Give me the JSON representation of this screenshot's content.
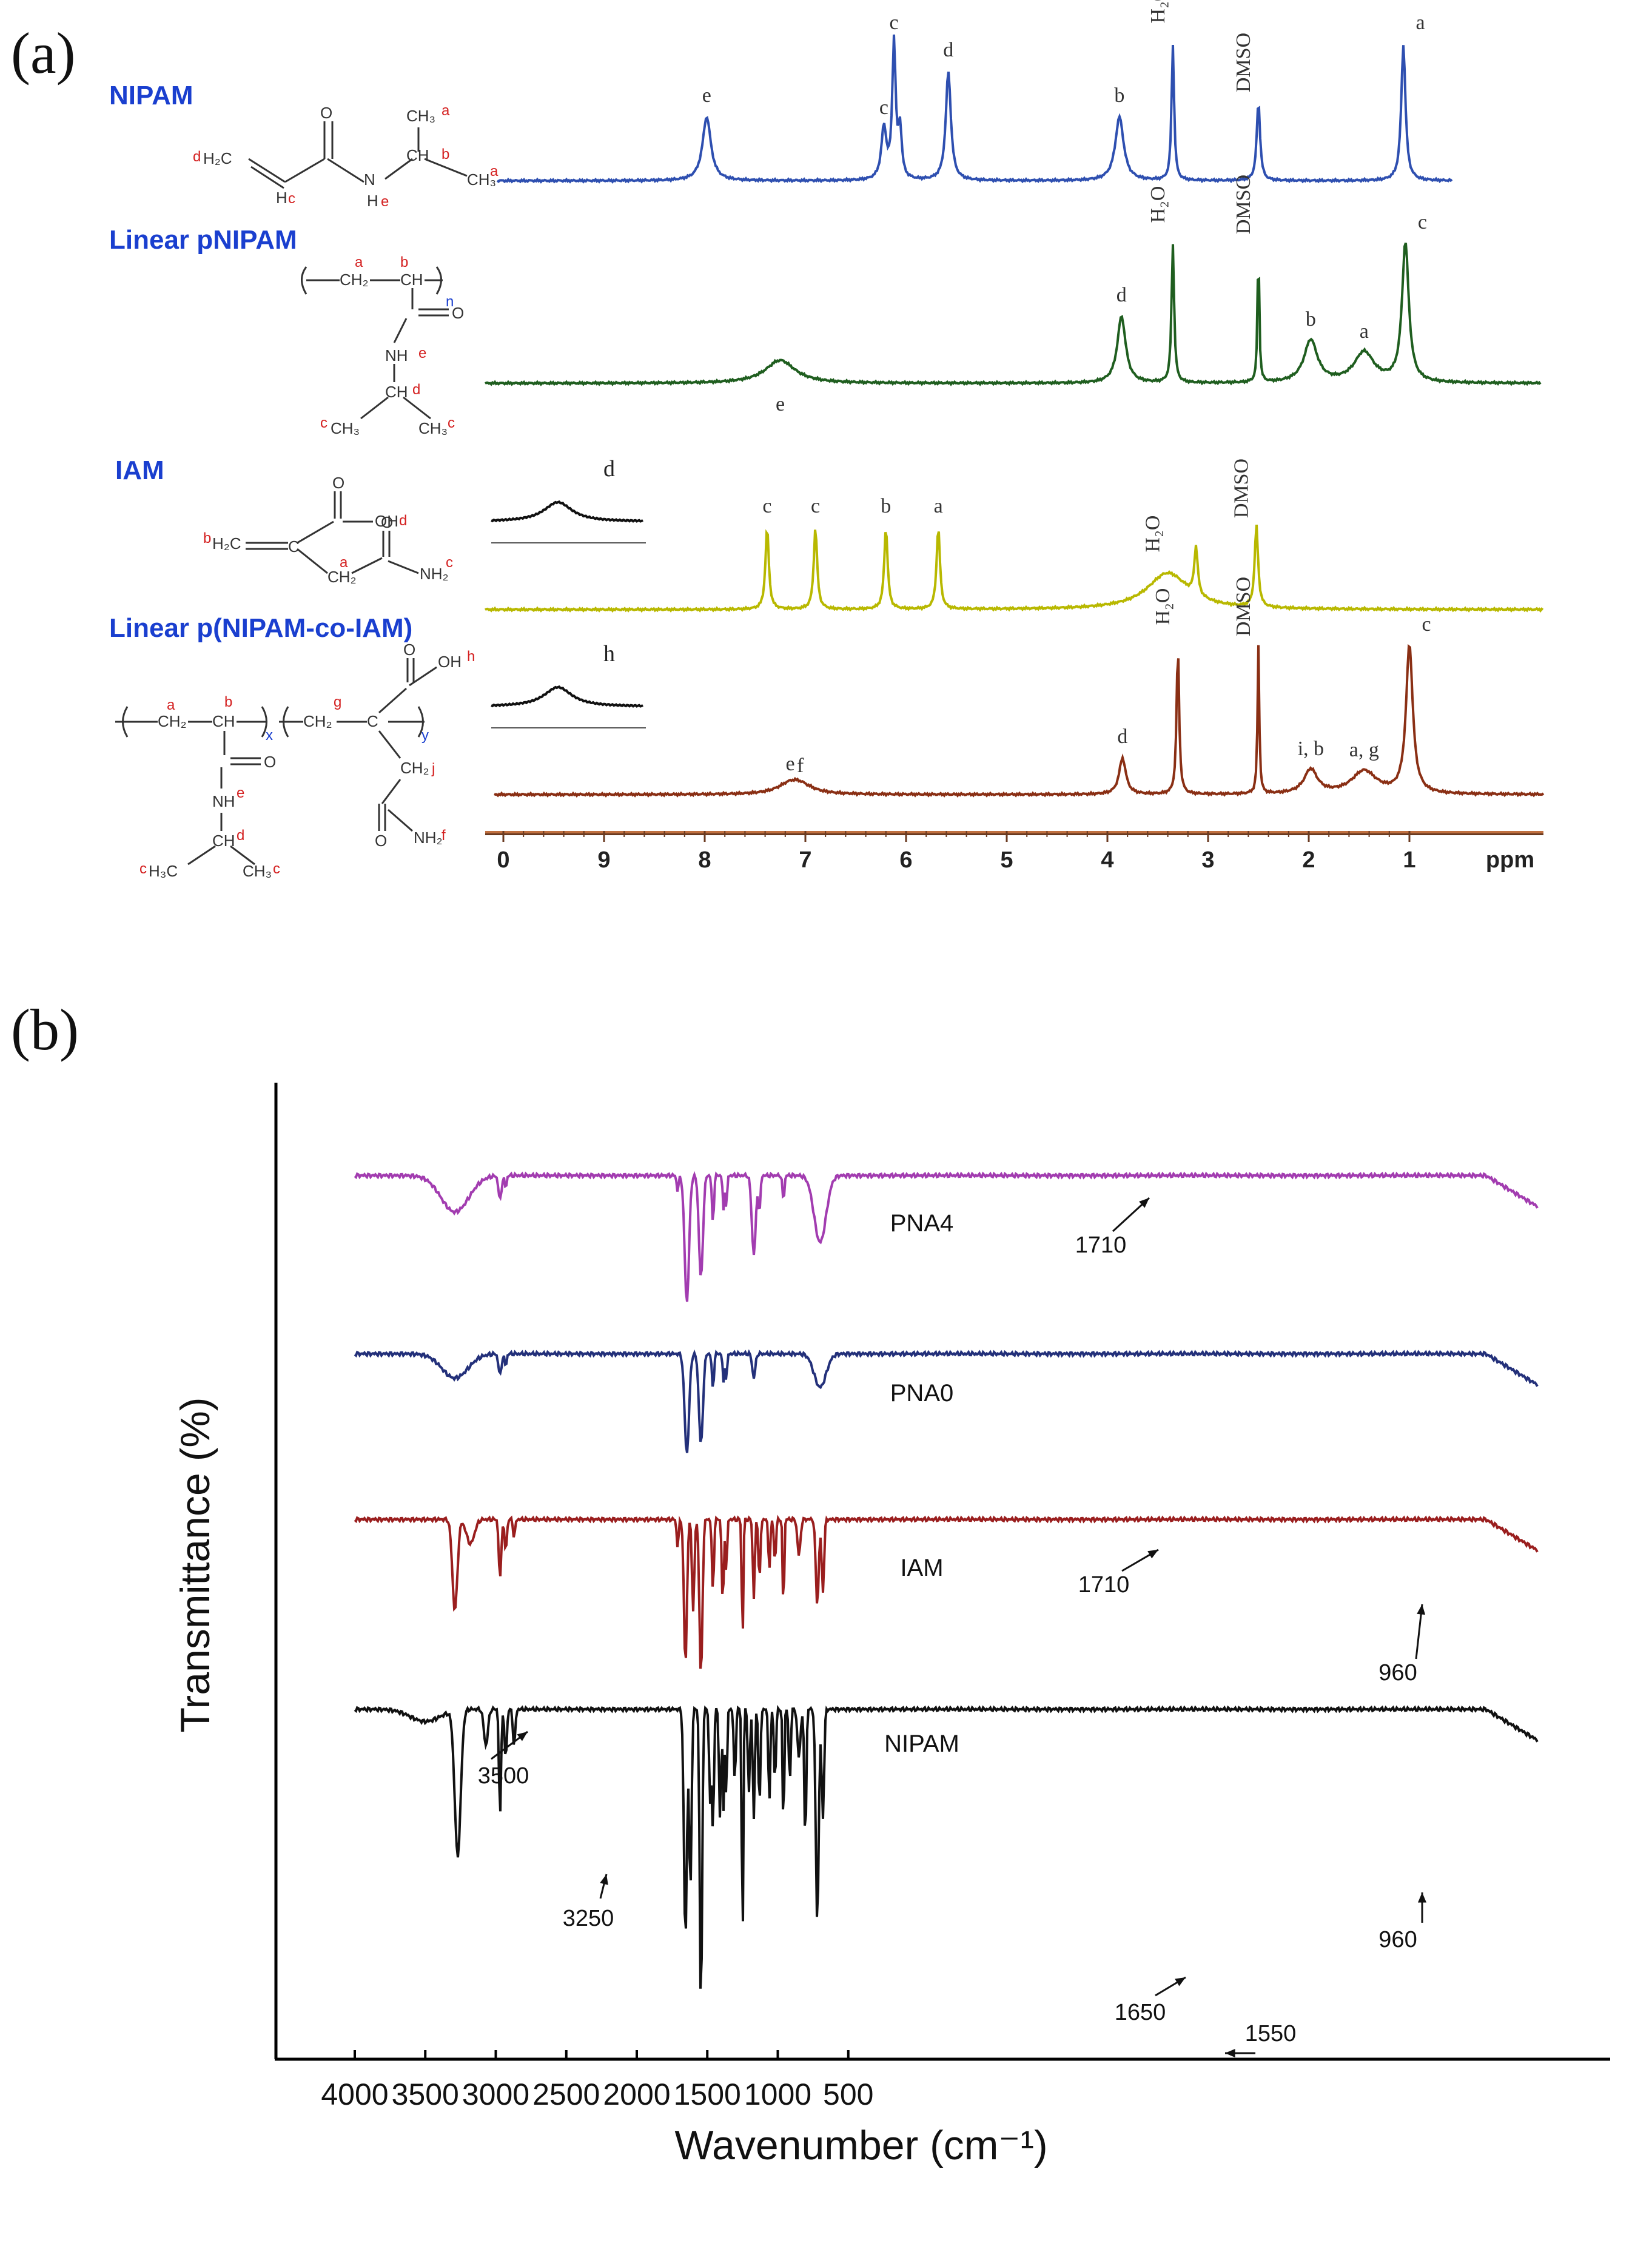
{
  "panel_labels": {
    "a": "(a)",
    "b": "(b)"
  },
  "colors": {
    "nipam": "#2e4fb0",
    "linear_pnipam": "#1f5e1f",
    "iam": "#b8b800",
    "copolymer": "#8a2f14",
    "compound_label": "#1a3fcf",
    "proton_letter": "#d42020",
    "ir_pna4": "#a23cb0",
    "ir_pna0": "#23307a",
    "ir_iam": "#9a1e1e",
    "ir_nipam": "#111111"
  },
  "compounds": [
    {
      "label": "NIPAM",
      "structure_icon": "nipam-structure-icon"
    },
    {
      "label": "Linear pNIPAM",
      "structure_icon": "pnipam-structure-icon"
    },
    {
      "label": "IAM",
      "structure_icon": "iam-structure-icon"
    },
    {
      "label": "Linear p(NIPAM-co-IAM)",
      "structure_icon": "copolymer-structure-icon"
    }
  ],
  "chart_data": [
    {
      "type": "line",
      "chart": "1H NMR spectra",
      "x_ticks": [
        "0",
        "9",
        "8",
        "7",
        "6",
        "5",
        "4",
        "3",
        "2",
        "1",
        "ppm"
      ],
      "xlim": [
        10,
        0.9
      ],
      "series": [
        {
          "name": "NIPAM",
          "peaks": [
            {
              "ppm": 7.98,
              "label": "e"
            },
            {
              "ppm": 6.22,
              "label": "c"
            },
            {
              "ppm": 6.12,
              "label": "c"
            },
            {
              "ppm": 6.06,
              "label": ""
            },
            {
              "ppm": 5.58,
              "label": "d"
            },
            {
              "ppm": 3.88,
              "label": "b"
            },
            {
              "ppm": 3.35,
              "label": "H₂O"
            },
            {
              "ppm": 2.5,
              "label": "DMSO"
            },
            {
              "ppm": 1.06,
              "label": "a"
            }
          ]
        },
        {
          "name": "Linear pNIPAM",
          "peaks": [
            {
              "ppm": 7.25,
              "label": "e"
            },
            {
              "ppm": 3.86,
              "label": "d"
            },
            {
              "ppm": 3.35,
              "label": "H₂O"
            },
            {
              "ppm": 2.5,
              "label": "DMSO"
            },
            {
              "ppm": 1.98,
              "label": "b"
            },
            {
              "ppm": 1.45,
              "label": "a"
            },
            {
              "ppm": 1.04,
              "label": "c"
            }
          ]
        },
        {
          "name": "IAM",
          "peaks": [
            {
              "ppm": 7.38,
              "label": "c"
            },
            {
              "ppm": 6.9,
              "label": "c"
            },
            {
              "ppm": 6.2,
              "label": "b"
            },
            {
              "ppm": 5.68,
              "label": "a"
            },
            {
              "ppm": 3.4,
              "label": "H₂O"
            },
            {
              "ppm": 2.52,
              "label": "DMSO"
            }
          ],
          "inset_label": "d"
        },
        {
          "name": "Linear p(NIPAM-co-IAM)",
          "peaks": [
            {
              "ppm": 7.15,
              "label": "e"
            },
            {
              "ppm": 7.05,
              "label": "f"
            },
            {
              "ppm": 3.85,
              "label": "d"
            },
            {
              "ppm": 3.3,
              "label": "H₂O"
            },
            {
              "ppm": 2.5,
              "label": "DMSO"
            },
            {
              "ppm": 1.98,
              "label": "i, b"
            },
            {
              "ppm": 1.45,
              "label": "a, g"
            },
            {
              "ppm": 1.0,
              "label": "c"
            }
          ],
          "inset_label": "h"
        }
      ]
    },
    {
      "type": "line",
      "chart": "FTIR spectra",
      "xlabel": "Wavenumber (cm⁻¹)",
      "ylabel": "Transmittance (%)",
      "xlim": [
        4200,
        500
      ],
      "x_ticks": [
        "4000",
        "3500",
        "3000",
        "2500",
        "2000",
        "1500",
        "1000",
        "500"
      ],
      "series": [
        {
          "name": "PNA4",
          "annotations": [
            "1710"
          ]
        },
        {
          "name": "PNA0",
          "annotations": []
        },
        {
          "name": "IAM",
          "annotations": [
            "1710",
            "960"
          ]
        },
        {
          "name": "NIPAM",
          "annotations": [
            "3500",
            "3250",
            "1650",
            "1550",
            "960"
          ]
        }
      ]
    }
  ]
}
